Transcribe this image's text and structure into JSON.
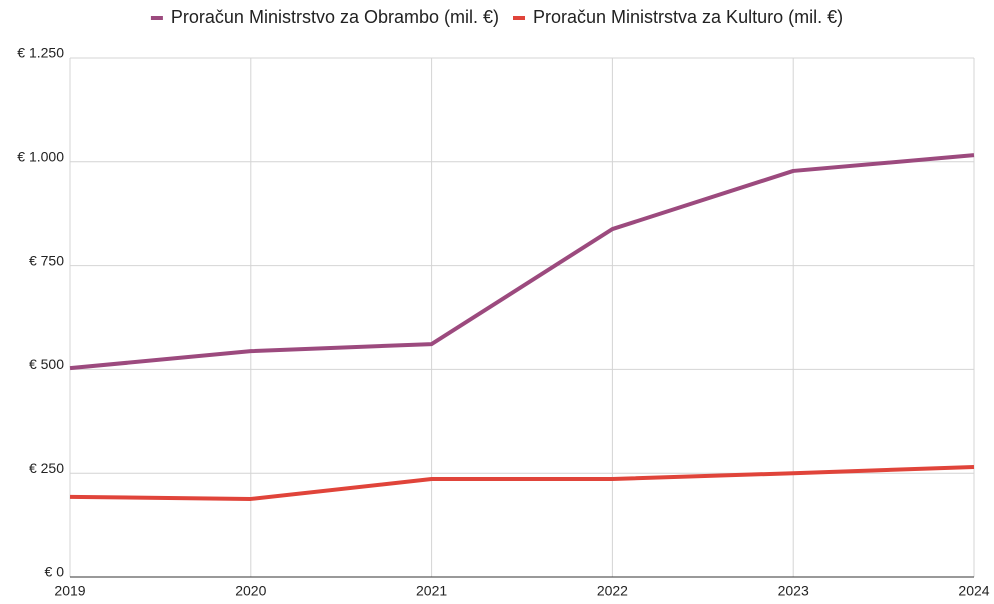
{
  "chart_data": {
    "type": "line",
    "categories": [
      "2019",
      "2020",
      "2021",
      "2022",
      "2023",
      "2024"
    ],
    "series": [
      {
        "name": "Proračun Ministrstvo za Obrambo (mil. €)",
        "color": "#9c4a7e",
        "values": [
          503,
          544,
          561,
          838,
          978,
          1016
        ]
      },
      {
        "name": "Proračun Ministrstva za Kulturo (mil. €)",
        "color": "#e0443a",
        "values": [
          193,
          188,
          236,
          236,
          250,
          265
        ]
      }
    ],
    "ylim": [
      0,
      1250
    ],
    "yticks": [
      {
        "value": 0,
        "label": "€ 0"
      },
      {
        "value": 250,
        "label": "€ 250"
      },
      {
        "value": 500,
        "label": "€ 500"
      },
      {
        "value": 750,
        "label": "€ 750"
      },
      {
        "value": 1000,
        "label": "€ 1.000"
      },
      {
        "value": 1250,
        "label": "€ 1.250"
      }
    ],
    "grid": true,
    "legend": "top"
  }
}
